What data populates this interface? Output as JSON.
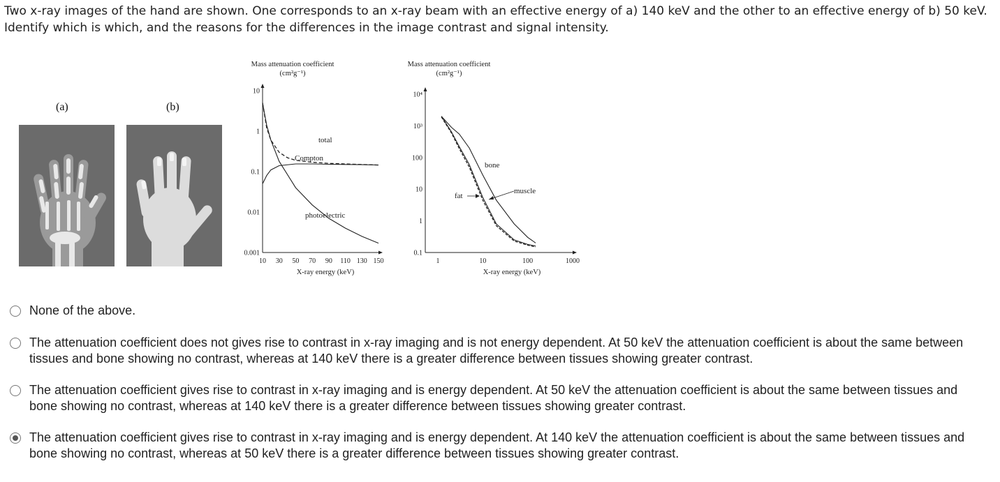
{
  "question": {
    "text": "Two x-ray images of the hand are shown.  One corresponds to an x-ray beam with an effective energy of a) 140 keV and the other to an effective energy of b) 50 keV.  Identify which is which, and the reasons for the differences in the image contrast and signal intensity."
  },
  "figure": {
    "panel_a_label": "(a)",
    "panel_b_label": "(b)"
  },
  "chart_data": [
    {
      "type": "line",
      "title": "Mass attenuation coefficient",
      "ylabel_units": "(cm²g⁻¹)",
      "xlabel": "X-ray energy (keV)",
      "x_scale": "linear",
      "y_scale": "log",
      "xlim": [
        10,
        150
      ],
      "ylim": [
        0.001,
        10
      ],
      "x_ticks": [
        "10",
        "30",
        "50",
        "70",
        "90",
        "110",
        "130",
        "150"
      ],
      "y_ticks": [
        "10",
        "1",
        "0.1",
        "0.01",
        "0.001"
      ],
      "series": [
        {
          "name": "total",
          "style": "dashed",
          "x": [
            10,
            15,
            20,
            30,
            40,
            50,
            70,
            90,
            110,
            130,
            150
          ],
          "y": [
            5.0,
            1.2,
            0.6,
            0.3,
            0.22,
            0.19,
            0.17,
            0.16,
            0.155,
            0.15,
            0.145
          ]
        },
        {
          "name": "Compton",
          "style": "solid",
          "x": [
            10,
            15,
            20,
            30,
            50,
            70,
            90,
            110,
            130,
            150
          ],
          "y": [
            0.05,
            0.08,
            0.11,
            0.14,
            0.155,
            0.155,
            0.152,
            0.15,
            0.148,
            0.146
          ]
        },
        {
          "name": "photoelectric",
          "style": "solid",
          "x": [
            10,
            15,
            20,
            30,
            50,
            70,
            90,
            110,
            130,
            150
          ],
          "y": [
            5.0,
            1.4,
            0.6,
            0.18,
            0.04,
            0.015,
            0.007,
            0.004,
            0.0025,
            0.0017
          ]
        }
      ],
      "annotations": [
        "total",
        "Compton",
        "photoelectric"
      ]
    },
    {
      "type": "line",
      "title": "Mass attenuation coefficient",
      "ylabel_units": "(cm²g⁻¹)",
      "xlabel": "X-ray energy (keV)",
      "x_scale": "log",
      "y_scale": "log",
      "xlim": [
        1,
        1000
      ],
      "ylim": [
        0.1,
        10000
      ],
      "x_ticks": [
        "1",
        "10",
        "100",
        "1000"
      ],
      "y_ticks": [
        "10⁴",
        "10³",
        "100",
        "10",
        "1",
        "0.1"
      ],
      "series": [
        {
          "name": "bone",
          "style": "solid",
          "x": [
            1.2,
            2,
            3,
            5,
            10,
            20,
            50,
            100,
            150
          ],
          "y": [
            2000,
            900,
            550,
            200,
            28,
            4.5,
            0.8,
            0.3,
            0.2
          ]
        },
        {
          "name": "muscle",
          "style": "solid",
          "x": [
            1.2,
            2,
            3,
            5,
            10,
            20,
            50,
            100,
            150
          ],
          "y": [
            2000,
            650,
            220,
            60,
            5.5,
            0.8,
            0.25,
            0.18,
            0.16
          ]
        },
        {
          "name": "fat",
          "style": "dashed",
          "x": [
            1.2,
            2,
            3,
            5,
            10,
            20,
            50,
            100,
            150
          ],
          "y": [
            1900,
            600,
            190,
            50,
            4.5,
            0.7,
            0.23,
            0.17,
            0.15
          ]
        }
      ],
      "annotations": [
        "bone",
        "muscle",
        "fat"
      ]
    }
  ],
  "options": [
    {
      "label": "None of the above.",
      "selected": false
    },
    {
      "label": "The attenuation coefficient does not gives rise to contrast in x-ray imaging and is not energy dependent. At 50 keV the attenuation coefficient is about the same between tissues and bone showing no contrast, whereas at 140 keV there is a greater difference between tissues showing greater contrast.",
      "selected": false
    },
    {
      "label": "The attenuation coefficient gives rise to contrast in x-ray imaging and is energy dependent. At 50  keV the attenuation coefficient is about the same between tissues and bone showing no contrast, whereas at 140 keV there is a greater difference between tissues showing greater contrast.",
      "selected": false
    },
    {
      "label": "The attenuation coefficient gives rise to contrast in x-ray imaging and is energy dependent. At 140 keV the attenuation coefficient is about the same between tissues and bone showing no contrast, whereas at 50 keV there is a greater difference between tissues showing greater contrast.",
      "selected": true
    }
  ]
}
